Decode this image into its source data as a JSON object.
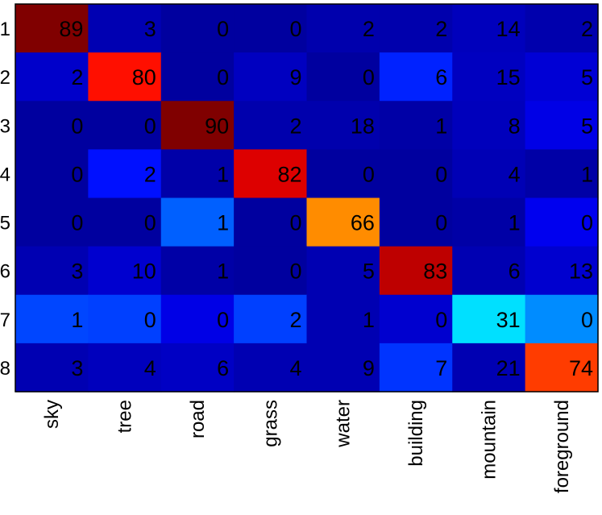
{
  "chart_data": {
    "type": "heatmap",
    "x_categories": [
      "sky",
      "tree",
      "road",
      "grass",
      "water",
      "building",
      "mountain",
      "foreground"
    ],
    "y_categories": [
      "1",
      "2",
      "3",
      "4",
      "5",
      "6",
      "7",
      "8"
    ],
    "values": [
      [
        89,
        3,
        0,
        0,
        2,
        2,
        14,
        2
      ],
      [
        2,
        80,
        0,
        9,
        0,
        6,
        15,
        5
      ],
      [
        0,
        0,
        90,
        2,
        18,
        1,
        8,
        5
      ],
      [
        0,
        2,
        1,
        82,
        0,
        0,
        4,
        1
      ],
      [
        0,
        0,
        1,
        0,
        66,
        0,
        1,
        0
      ],
      [
        3,
        10,
        1,
        0,
        5,
        83,
        6,
        13
      ],
      [
        1,
        0,
        0,
        2,
        1,
        0,
        31,
        0
      ],
      [
        3,
        4,
        6,
        4,
        9,
        7,
        21,
        74
      ]
    ],
    "cell_colors": [
      [
        "#800000",
        "#0000b2",
        "#00009f",
        "#00009f",
        "#0000ad",
        "#0000ad",
        "#0000bc",
        "#0000ad"
      ],
      [
        "#0000ca",
        "#ff0f00",
        "#00009f",
        "#0000c0",
        "#00009f",
        "#0022ff",
        "#0000c0",
        "#0000d5"
      ],
      [
        "#00009f",
        "#00009f",
        "#800000",
        "#0000ad",
        "#0000ad",
        "#0000a6",
        "#0000bc",
        "#0000e6"
      ],
      [
        "#00009f",
        "#0010ff",
        "#0000a8",
        "#dd0000",
        "#00009f",
        "#00009f",
        "#0000b5",
        "#0000a6"
      ],
      [
        "#00009f",
        "#00009f",
        "#0060ff",
        "#00009f",
        "#ff8c00",
        "#00009f",
        "#0000a6",
        "#0000ef"
      ],
      [
        "#0000b2",
        "#0000cf",
        "#0000a6",
        "#00009f",
        "#0000b2",
        "#be0000",
        "#0000b2",
        "#0000cf"
      ],
      [
        "#0046ff",
        "#0040ff",
        "#0000e6",
        "#0040ff",
        "#0000b2",
        "#0000cf",
        "#00e0ff",
        "#008cff"
      ],
      [
        "#0000b2",
        "#0000bd",
        "#0000c4",
        "#0000b2",
        "#0000b2",
        "#0034ff",
        "#0000b2",
        "#ff3c00"
      ]
    ],
    "grid": false
  }
}
